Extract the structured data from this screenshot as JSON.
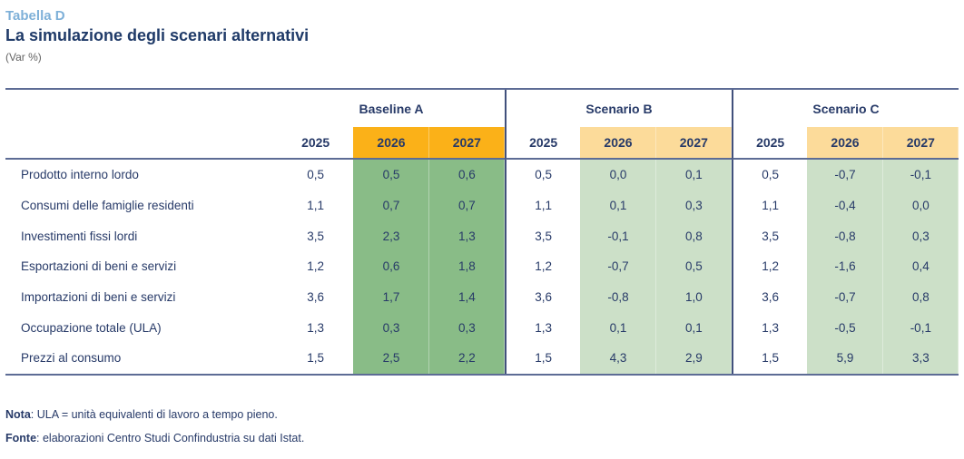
{
  "header": {
    "kicker": "Tabella D",
    "title": "La simulazione degli scenari alternativi",
    "subtitle": "(Var %)"
  },
  "table": {
    "groups": [
      {
        "label": "Baseline A"
      },
      {
        "label": "Scenario B"
      },
      {
        "label": "Scenario C"
      }
    ],
    "year_columns": [
      "2025",
      "2026",
      "2027",
      "2025",
      "2026",
      "2027",
      "2025",
      "2026",
      "2027"
    ],
    "rows": [
      {
        "label": "Prodotto interno lordo",
        "values": [
          "0,5",
          "0,5",
          "0,6",
          "0,5",
          "0,0",
          "0,1",
          "0,5",
          "-0,7",
          "-0,1"
        ]
      },
      {
        "label": "Consumi delle famiglie residenti",
        "values": [
          "1,1",
          "0,7",
          "0,7",
          "1,1",
          "0,1",
          "0,3",
          "1,1",
          "-0,4",
          "0,0"
        ]
      },
      {
        "label": "Investimenti fissi lordi",
        "values": [
          "3,5",
          "2,3",
          "1,3",
          "3,5",
          "-0,1",
          "0,8",
          "3,5",
          "-0,8",
          "0,3"
        ]
      },
      {
        "label": "Esportazioni di beni e servizi",
        "values": [
          "1,2",
          "0,6",
          "1,8",
          "1,2",
          "-0,7",
          "0,5",
          "1,2",
          "-1,6",
          "0,4"
        ]
      },
      {
        "label": "Importazioni di beni e servizi",
        "values": [
          "3,6",
          "1,7",
          "1,4",
          "3,6",
          "-0,8",
          "1,0",
          "3,6",
          "-0,7",
          "0,8"
        ]
      },
      {
        "label": "Occupazione totale (ULA)",
        "values": [
          "1,3",
          "0,3",
          "0,3",
          "1,3",
          "0,1",
          "0,1",
          "1,3",
          "-0,5",
          "-0,1"
        ]
      },
      {
        "label": "Prezzi al consumo",
        "values": [
          "1,5",
          "2,5",
          "2,2",
          "1,5",
          "4,3",
          "2,9",
          "1,5",
          "5,9",
          "3,3"
        ]
      }
    ]
  },
  "notes": {
    "nota_label": "Nota",
    "nota_text": ": ULA = unità equivalenti di lavoro a tempo pieno.",
    "fonte_label": "Fonte",
    "fonte_text": ": elaborazioni Centro Studi Confindustria su dati Istat."
  },
  "colors": {
    "navy": "#273a68",
    "navy-title": "#1f3a68",
    "lightblue": "#7eb0d8",
    "rule": "#5d6c95",
    "groupline": "#41507c",
    "gold": "#fbb118",
    "peach": "#fcdb9a",
    "green-dark": "#89bc87",
    "green-light": "#cce0c8"
  }
}
